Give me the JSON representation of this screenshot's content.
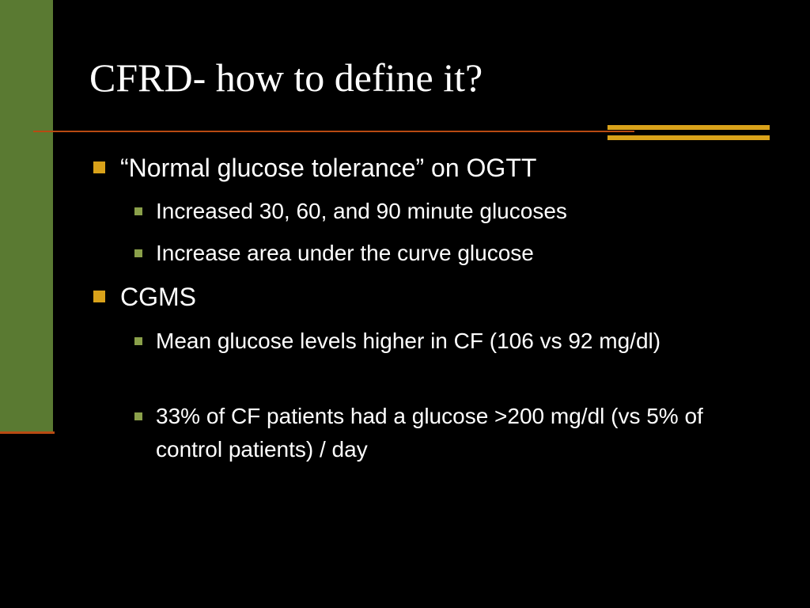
{
  "title": "CFRD- how to define it?",
  "bullets": [
    {
      "text": "“Normal glucose tolerance” on OGTT",
      "sub": [
        "Increased 30, 60, and 90 minute glucoses",
        "Increase area under the curve glucose"
      ]
    },
    {
      "text": "CGMS",
      "sub": [
        "Mean glucose levels higher in CF (106 vs 92 mg/dl)",
        "33% of CF patients had a glucose >200 mg/dl (vs 5% of control patients) / day"
      ]
    }
  ]
}
